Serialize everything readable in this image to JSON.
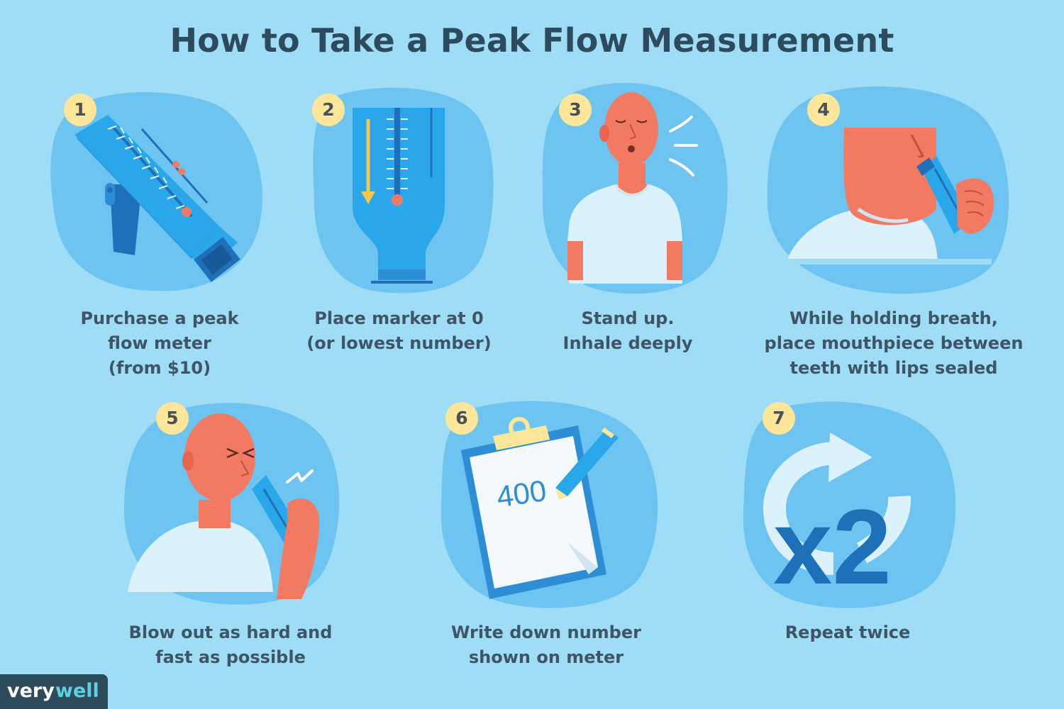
{
  "title": "How to Take a Peak Flow Measurement",
  "steps": [
    {
      "number": "1",
      "caption": [
        "Purchase a peak",
        "flow meter",
        "(from $10)"
      ]
    },
    {
      "number": "2",
      "caption": [
        "Place marker at 0",
        "(or lowest number)"
      ]
    },
    {
      "number": "3",
      "caption": [
        "Stand up.",
        "Inhale deeply"
      ]
    },
    {
      "number": "4",
      "caption": [
        "While holding breath,",
        "place mouthpiece between",
        "teeth with lips sealed"
      ]
    },
    {
      "number": "5",
      "caption": [
        "Blow out as hard and",
        "fast as possible"
      ]
    },
    {
      "number": "6",
      "caption": [
        "Write down number",
        "shown on meter"
      ]
    },
    {
      "number": "7",
      "caption": [
        "Repeat twice"
      ]
    }
  ],
  "clipboard_reading": "400",
  "repeat_label": "x2",
  "brand": {
    "part1": "very",
    "part2": "well"
  },
  "colors": {
    "background": "#9fdcf6",
    "blob": "#6dc4f0",
    "meter": "#2aa7ea",
    "skin": "#f27a63",
    "badge": "#fbe69a",
    "text": "#3d5566"
  }
}
